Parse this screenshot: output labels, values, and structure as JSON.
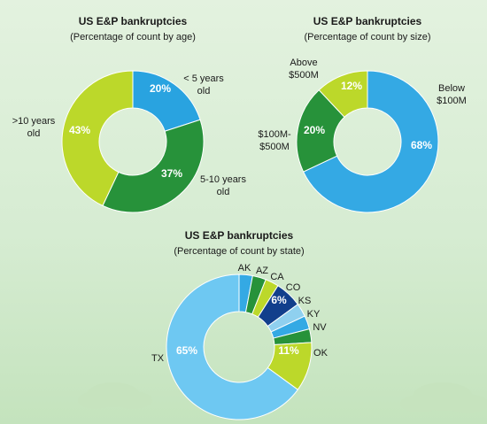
{
  "chart_data": [
    {
      "type": "donut",
      "title": "US E&P bankruptcies",
      "subtitle": "(Percentage of count by age)",
      "slices": [
        {
          "label_lines": [
            "< 5 years",
            "old"
          ],
          "value": 20,
          "value_label": "20%",
          "color": "#29a3e0"
        },
        {
          "label_lines": [
            "5-10 years",
            "old"
          ],
          "value": 37,
          "value_label": "37%",
          "color": "#27923a"
        },
        {
          "label_lines": [
            ">10 years",
            "old"
          ],
          "value": 43,
          "value_label": "43%",
          "color": "#bcd82a"
        }
      ]
    },
    {
      "type": "donut",
      "title": "US E&P bankruptcies",
      "subtitle": "(Percentage of count by size)",
      "slices": [
        {
          "label_lines": [
            "Below",
            "$100M"
          ],
          "value": 68,
          "value_label": "68%",
          "color": "#34a9e4"
        },
        {
          "label_lines": [
            "$100M-",
            "$500M"
          ],
          "value": 20,
          "value_label": "20%",
          "color": "#27923a"
        },
        {
          "label_lines": [
            "Above",
            "$500M"
          ],
          "value": 12,
          "value_label": "12%",
          "color": "#bcd82a"
        }
      ]
    },
    {
      "type": "donut",
      "title": "US E&P bankruptcies",
      "subtitle": "(Percentage of count by state)",
      "slices": [
        {
          "label_lines": [
            "AK"
          ],
          "value": 3,
          "value_label": "",
          "color": "#34a9e4"
        },
        {
          "label_lines": [
            "AZ"
          ],
          "value": 3,
          "value_label": "",
          "color": "#27923a"
        },
        {
          "label_lines": [
            "CA"
          ],
          "value": 3,
          "value_label": "",
          "color": "#bcd82a"
        },
        {
          "label_lines": [
            "CO"
          ],
          "value": 6,
          "value_label": "6%",
          "color": "#123f8c"
        },
        {
          "label_lines": [
            "KS"
          ],
          "value": 3,
          "value_label": "",
          "color": "#8fd0ef"
        },
        {
          "label_lines": [
            "KY"
          ],
          "value": 3,
          "value_label": "",
          "color": "#34a9e4"
        },
        {
          "label_lines": [
            "NV"
          ],
          "value": 3,
          "value_label": "",
          "color": "#27923a"
        },
        {
          "label_lines": [
            "OK"
          ],
          "value": 11,
          "value_label": "11%",
          "color": "#bcd82a"
        },
        {
          "label_lines": [
            "TX"
          ],
          "value": 65,
          "value_label": "65%",
          "color": "#6ec8f2"
        }
      ]
    }
  ]
}
